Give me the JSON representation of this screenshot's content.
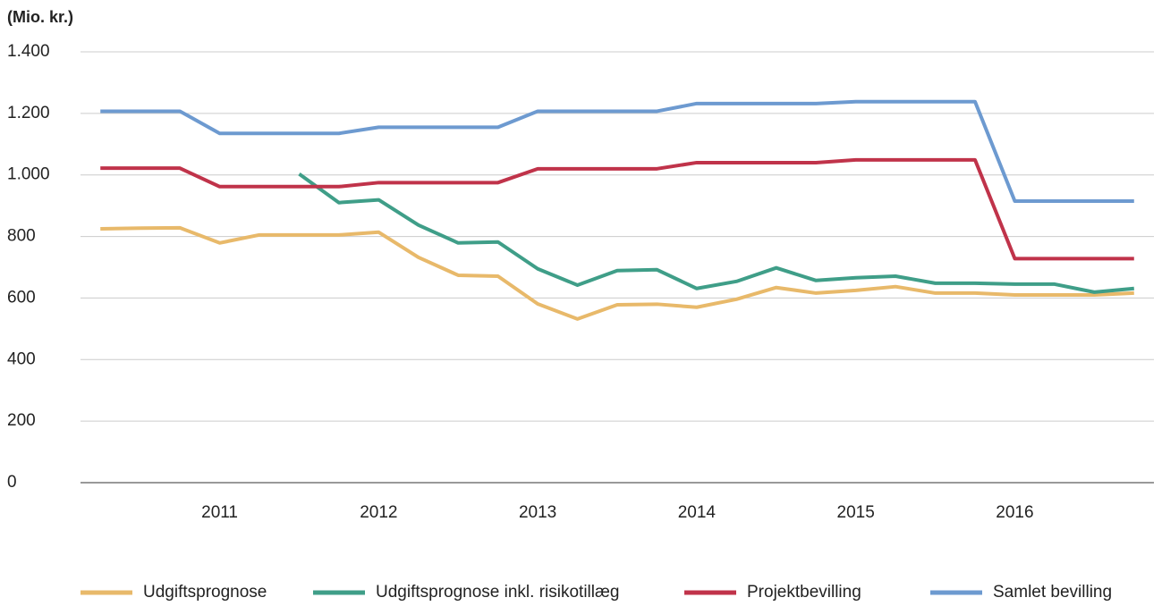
{
  "chart_data": {
    "type": "line",
    "y_label": "(Mio. kr.)",
    "categories": [
      null,
      null,
      null,
      "2011",
      null,
      null,
      null,
      "2012",
      null,
      null,
      null,
      "2013",
      null,
      null,
      null,
      "2014",
      null,
      null,
      null,
      "2015",
      null,
      null,
      null,
      "2016",
      null,
      null,
      null
    ],
    "series": [
      {
        "name": "Udgiftsprognose",
        "color": "#e8b96a",
        "values": [
          825,
          827,
          828,
          779,
          805,
          805,
          805,
          814,
          732,
          674,
          671,
          581,
          532,
          578,
          580,
          570,
          596,
          634,
          616,
          625,
          637,
          616,
          616,
          610,
          610,
          610,
          616
        ]
      },
      {
        "name": "Udgiftsprognose inkl. risikotillæg",
        "color": "#3f9e88",
        "values": [
          null,
          null,
          null,
          null,
          null,
          1003,
          910,
          919,
          837,
          779,
          782,
          695,
          642,
          689,
          692,
          631,
          654,
          698,
          657,
          666,
          671,
          648,
          648,
          645,
          645,
          619,
          631
        ]
      },
      {
        "name": "Projektbevilling",
        "color": "#c0334a",
        "values": [
          1022,
          1022,
          1022,
          962,
          962,
          962,
          962,
          975,
          975,
          975,
          975,
          1020,
          1020,
          1020,
          1020,
          1040,
          1040,
          1040,
          1040,
          1049,
          1049,
          1049,
          1049,
          728,
          728,
          728,
          728
        ]
      },
      {
        "name": "Samlet bevilling",
        "color": "#6d9ad0",
        "values": [
          1207,
          1207,
          1207,
          1135,
          1135,
          1135,
          1135,
          1155,
          1155,
          1155,
          1155,
          1207,
          1207,
          1207,
          1207,
          1232,
          1232,
          1232,
          1232,
          1238,
          1238,
          1238,
          1238,
          915,
          915,
          915,
          915
        ]
      }
    ],
    "ylim": [
      0,
      1400
    ],
    "yticks": [
      0,
      200,
      400,
      600,
      800,
      {
        "value": 1000,
        "label": "1.000"
      },
      {
        "value": 1200,
        "label": "1.200"
      },
      {
        "value": 1400,
        "label": "1.400"
      }
    ],
    "grid": true,
    "legend": "bottom"
  }
}
